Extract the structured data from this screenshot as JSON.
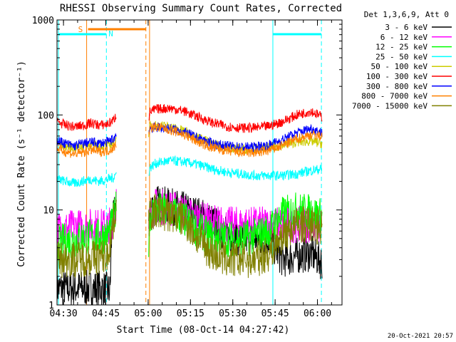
{
  "chart_data": {
    "type": "line",
    "title": "RHESSI Observing Summary Count Rates, Corrected",
    "xlabel": "Start Time (08-Oct-14 04:27:42)",
    "ylabel": "Corrected Count Rate (s⁻¹ detector⁻¹)",
    "y_scale": "log",
    "ylim": [
      1,
      1000
    ],
    "xlim_minutes": [
      0,
      101
    ],
    "x_tick_minutes": [
      2.3,
      17.3,
      32.3,
      47.3,
      62.3,
      77.3,
      92.3
    ],
    "x_tick_labels": [
      "04:30",
      "04:45",
      "05:00",
      "05:15",
      "05:30",
      "05:45",
      "06:00"
    ],
    "y_tick_values": [
      1,
      10,
      100,
      1000
    ],
    "y_tick_labels": [
      "1",
      "10",
      "100",
      "1000"
    ],
    "legend_header": "Det 1,3,6,9, Att 0",
    "legend_position": "right",
    "grid": false,
    "annotations": {
      "saa_label": "S",
      "night_label": "N",
      "timestamp": "20-Oct-2021 20:57"
    },
    "markers": {
      "saa_line_minute": 10.5,
      "saa_bar_minutes": [
        11,
        31.5
      ],
      "night_dashed_minute": 17.5,
      "gap_dashed_minute": 31.5,
      "gap_solid_minute": 32.8,
      "cyan_left_minute": 0.5,
      "cyan_right_minute": 76.5,
      "cyan_right_dashed_minute": 93.7,
      "cyan_top_left_minutes": [
        0.5,
        17.5
      ],
      "cyan_top_right_minutes": [
        76.5,
        93.7
      ]
    },
    "series": [
      {
        "name": "3 - 6 keV",
        "color": "#000000",
        "segments": [
          {
            "t": [
              0,
              4,
              8,
              12,
              16,
              18.8,
              19.5,
              20,
              21
            ],
            "v": [
              1.5,
              1.5,
              1.5,
              1.5,
              1.5,
              1.4,
              7,
              8,
              12
            ]
          },
          {
            "t": [
              32.5,
              33,
              35,
              40,
              45,
              50,
              55,
              60,
              65,
              70,
              75,
              80,
              85,
              90,
              94
            ],
            "v": [
              6,
              10,
              12,
              11,
              10,
              9,
              7.5,
              5.5,
              5,
              5,
              5,
              3,
              3.3,
              3.5,
              2.8
            ]
          }
        ]
      },
      {
        "name": "6 - 12 keV",
        "color": "#ff00ff",
        "segments": [
          {
            "t": [
              0,
              5,
              10,
              15,
              18,
              19.5,
              20.5,
              21
            ],
            "v": [
              6.2,
              6.5,
              6.7,
              6.7,
              6.7,
              7.5,
              9,
              13
            ]
          },
          {
            "t": [
              32.5,
              33,
              35,
              40,
              45,
              50,
              55,
              60,
              65,
              70,
              75,
              80,
              85,
              90,
              94
            ],
            "v": [
              6,
              9,
              11,
              10.5,
              9.5,
              8,
              7.5,
              7,
              7,
              7,
              7,
              7,
              7,
              7,
              6.5
            ]
          }
        ]
      },
      {
        "name": "12 - 25 keV",
        "color": "#00ff00",
        "segments": [
          {
            "t": [
              0,
              5,
              10,
              15,
              18,
              19.5,
              20.5,
              21
            ],
            "v": [
              4.5,
              4.8,
              5.2,
              5.2,
              5.5,
              7,
              9,
              11
            ]
          },
          {
            "t": [
              32.5,
              33,
              35,
              40,
              45,
              50,
              55,
              60,
              65,
              70,
              75,
              80,
              85,
              90,
              94
            ],
            "v": [
              5,
              9,
              10,
              9.5,
              8,
              6,
              5.2,
              5,
              5,
              5.3,
              6,
              9,
              10,
              9.5,
              8.5
            ]
          }
        ]
      },
      {
        "name": "25 - 50 keV",
        "color": "#00ffff",
        "segments": [
          {
            "t": [
              0,
              3,
              6,
              9,
              12,
              15,
              18,
              20,
              21
            ],
            "v": [
              21,
              20,
              19,
              20,
              21,
              20,
              21,
              22,
              24
            ]
          },
          {
            "t": [
              32.5,
              33,
              35,
              40,
              45,
              50,
              55,
              60,
              65,
              70,
              75,
              80,
              85,
              90,
              94
            ],
            "v": [
              25,
              28,
              31,
              33,
              32,
              30,
              27,
              25,
              24,
              23,
              23,
              23,
              24,
              26,
              27
            ]
          }
        ]
      },
      {
        "name": "50 - 100 keV",
        "color": "#cccc00",
        "segments": [
          {
            "t": [
              0,
              3,
              6,
              9,
              12,
              15,
              18,
              20,
              21
            ],
            "v": [
              50,
              47,
              45,
              47,
              49,
              47,
              48,
              50,
              55
            ]
          },
          {
            "t": [
              32.5,
              33,
              35,
              40,
              45,
              50,
              55,
              60,
              65,
              70,
              75,
              80,
              85,
              90,
              94
            ],
            "v": [
              65,
              75,
              78,
              75,
              68,
              58,
              50,
              46,
              44,
              44,
              45,
              48,
              52,
              53,
              50
            ]
          }
        ]
      },
      {
        "name": "100 - 300 keV",
        "color": "#ff0000",
        "segments": [
          {
            "t": [
              0,
              3,
              6,
              9,
              12,
              15,
              18,
              20,
              21
            ],
            "v": [
              85,
              78,
              75,
              77,
              82,
              78,
              80,
              88,
              100
            ]
          },
          {
            "t": [
              32.5,
              33,
              35,
              40,
              45,
              50,
              55,
              60,
              65,
              70,
              75,
              80,
              85,
              90,
              94
            ],
            "v": [
              95,
              108,
              115,
              118,
              110,
              95,
              83,
              76,
              73,
              73,
              76,
              85,
              100,
              110,
              95
            ]
          }
        ]
      },
      {
        "name": "300 - 800 keV",
        "color": "#0000ff",
        "segments": [
          {
            "t": [
              0,
              3,
              6,
              9,
              12,
              15,
              18,
              20,
              21
            ],
            "v": [
              54,
              50,
              47,
              50,
              52,
              50,
              52,
              56,
              62
            ]
          },
          {
            "t": [
              32.5,
              33,
              35,
              40,
              45,
              50,
              55,
              60,
              65,
              70,
              75,
              80,
              85,
              90,
              94
            ],
            "v": [
              68,
              72,
              74,
              72,
              66,
              57,
              50,
              47,
              46,
              46,
              48,
              55,
              65,
              72,
              65
            ]
          }
        ]
      },
      {
        "name": "800 - 7000 keV",
        "color": "#ff8000",
        "segments": [
          {
            "t": [
              0,
              3,
              6,
              9,
              12,
              15,
              18,
              20,
              21
            ],
            "v": [
              44,
              41,
              39,
              40,
              43,
              41,
              42,
              45,
              50
            ]
          },
          {
            "t": [
              32.5,
              33,
              35,
              40,
              45,
              50,
              55,
              60,
              65,
              70,
              75,
              80,
              85,
              90,
              94
            ],
            "v": [
              66,
              73,
              75,
              70,
              62,
              52,
              45,
              42,
              40,
              40,
              42,
              48,
              56,
              62,
              60
            ]
          }
        ]
      },
      {
        "name": "7000 - 15000 keV",
        "color": "#808000",
        "segments": [
          {
            "t": [
              0,
              5,
              10,
              15,
              18,
              19.5,
              20.5,
              21
            ],
            "v": [
              3,
              3,
              3.1,
              3.2,
              3.3,
              6,
              9,
              11
            ]
          },
          {
            "t": [
              32.5,
              33,
              35,
              40,
              45,
              50,
              55,
              60,
              65,
              70,
              75,
              80,
              85,
              90,
              94
            ],
            "v": [
              8,
              9,
              9.5,
              9,
              8,
              5,
              3.5,
              3,
              3,
              3,
              3.5,
              5.5,
              7,
              7,
              6.5
            ]
          }
        ]
      }
    ]
  }
}
